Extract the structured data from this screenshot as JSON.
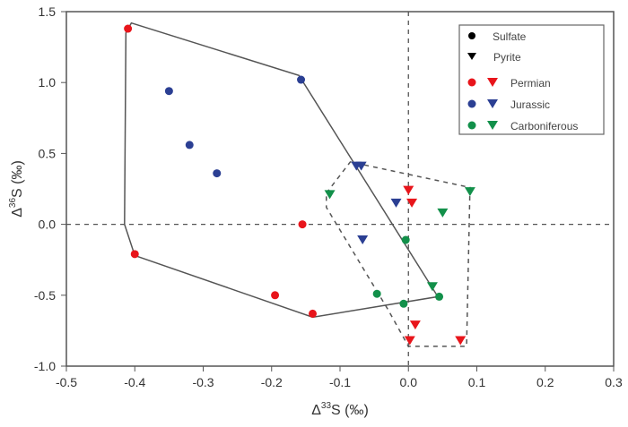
{
  "chart_data": {
    "type": "scatter",
    "xlabel": "Δ33S (‰)",
    "ylabel": "Δ36S (‰)",
    "xlabel_parts": {
      "pre": "Δ",
      "sup": "33",
      "post": "S (‰)"
    },
    "ylabel_parts": {
      "pre": "Δ",
      "sup": "36",
      "post": "S (‰)"
    },
    "xlim": [
      -0.5,
      0.3
    ],
    "ylim": [
      -1.0,
      1.5
    ],
    "xticks": [
      "-0.5",
      "-0.4",
      "-0.3",
      "-0.2",
      "-0.1",
      "0.0",
      "0.1",
      "0.2",
      "0.3"
    ],
    "yticks": [
      "-1.0",
      "-0.5",
      "0.0",
      "0.5",
      "1.0",
      "1.5"
    ],
    "grid": false,
    "reference_lines": {
      "x": 0,
      "y": 0
    },
    "legend_position": "top-right",
    "legend": {
      "shapes": [
        {
          "label": "Sulfate",
          "marker": "circle"
        },
        {
          "label": "Pyrite",
          "marker": "triangle-down"
        }
      ],
      "groups": [
        {
          "label": "Permian",
          "color": "#e8151b"
        },
        {
          "label": "Jurassic",
          "color": "#2b3f93"
        },
        {
          "label": "Carboniferous",
          "color": "#12904a"
        }
      ]
    },
    "series": [
      {
        "name": "Permian",
        "type": "Sulfate",
        "color": "#e8151b",
        "marker": "circle",
        "points": [
          [
            -0.41,
            1.38
          ],
          [
            -0.155,
            0.0
          ],
          [
            -0.4,
            -0.21
          ],
          [
            -0.195,
            -0.5
          ],
          [
            -0.14,
            -0.63
          ]
        ]
      },
      {
        "name": "Jurassic",
        "type": "Sulfate",
        "color": "#2b3f93",
        "marker": "circle",
        "points": [
          [
            -0.157,
            1.02
          ],
          [
            -0.35,
            0.94
          ],
          [
            -0.32,
            0.56
          ],
          [
            -0.28,
            0.36
          ]
        ]
      },
      {
        "name": "Carboniferous",
        "type": "Sulfate",
        "color": "#12904a",
        "marker": "circle",
        "points": [
          [
            -0.004,
            -0.11
          ],
          [
            -0.046,
            -0.49
          ],
          [
            -0.007,
            -0.56
          ],
          [
            0.045,
            -0.51
          ]
        ]
      },
      {
        "name": "Permian",
        "type": "Pyrite",
        "color": "#e8151b",
        "marker": "triangle-down",
        "points": [
          [
            0.0,
            0.24
          ],
          [
            0.005,
            0.15
          ],
          [
            0.01,
            -0.71
          ],
          [
            0.002,
            -0.82
          ],
          [
            0.076,
            -0.82
          ]
        ]
      },
      {
        "name": "Jurassic",
        "type": "Pyrite",
        "color": "#2b3f93",
        "marker": "triangle-down",
        "points": [
          [
            -0.076,
            0.41
          ],
          [
            -0.069,
            0.41
          ],
          [
            -0.018,
            0.15
          ],
          [
            -0.067,
            -0.11
          ]
        ]
      },
      {
        "name": "Carboniferous",
        "type": "Pyrite",
        "color": "#12904a",
        "marker": "triangle-down",
        "points": [
          [
            -0.115,
            0.21
          ],
          [
            0.09,
            0.23
          ],
          [
            0.05,
            0.08
          ],
          [
            0.035,
            -0.44
          ]
        ]
      }
    ],
    "envelopes": [
      {
        "style": "solid",
        "points": [
          [
            -0.405,
            1.42
          ],
          [
            -0.16,
            1.05
          ],
          [
            0.043,
            -0.51
          ],
          [
            -0.14,
            -0.655
          ],
          [
            -0.4,
            -0.22
          ],
          [
            -0.415,
            0.0
          ],
          [
            -0.413,
            1.35
          ]
        ]
      },
      {
        "style": "dashed",
        "points": [
          [
            -0.12,
            0.22
          ],
          [
            -0.085,
            0.44
          ],
          [
            0.09,
            0.26
          ],
          [
            0.085,
            -0.86
          ],
          [
            0.0,
            -0.86
          ],
          [
            -0.03,
            -0.6
          ],
          [
            -0.12,
            0.12
          ]
        ]
      }
    ]
  }
}
